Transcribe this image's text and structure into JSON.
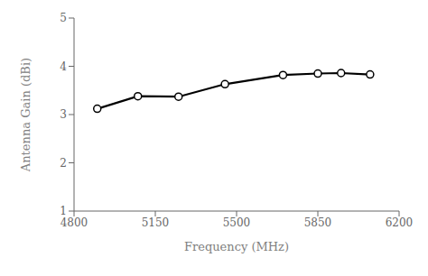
{
  "chart_data": {
    "type": "line",
    "x": [
      4900,
      5075,
      5250,
      5450,
      5700,
      5850,
      5950,
      6075
    ],
    "values": [
      3.12,
      3.38,
      3.37,
      3.63,
      3.82,
      3.85,
      3.86,
      3.83
    ],
    "xlim": [
      4800,
      6200
    ],
    "ylim": [
      1,
      5
    ],
    "xticks": [
      4800,
      5150,
      5500,
      5850,
      6200
    ],
    "yticks": [
      1,
      2,
      3,
      4,
      5
    ],
    "xlabel": "Frequency (MHz)",
    "ylabel": "Antenna Gain (dBi)",
    "color": "#000000",
    "marker": "o",
    "grid": false
  }
}
